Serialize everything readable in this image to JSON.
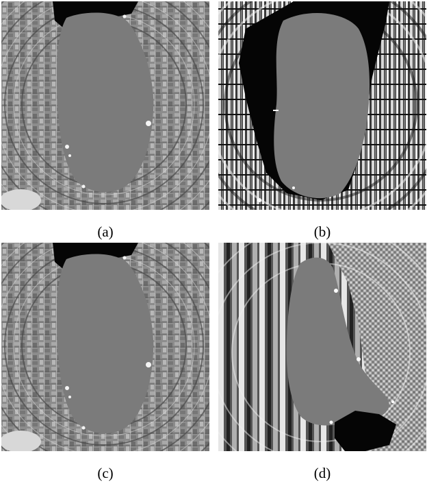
{
  "panels": [
    {
      "id": "a",
      "caption": "(a)"
    },
    {
      "id": "b",
      "caption": "(b)"
    },
    {
      "id": "c",
      "caption": "(c)"
    },
    {
      "id": "d",
      "caption": "(d)"
    }
  ],
  "colors": {
    "background": "#ffffff",
    "hole_gray": "#7b7b7b",
    "void_black": "#050505",
    "texture_light": "#c9c9c9",
    "texture_dark": "#4a4a4a"
  }
}
